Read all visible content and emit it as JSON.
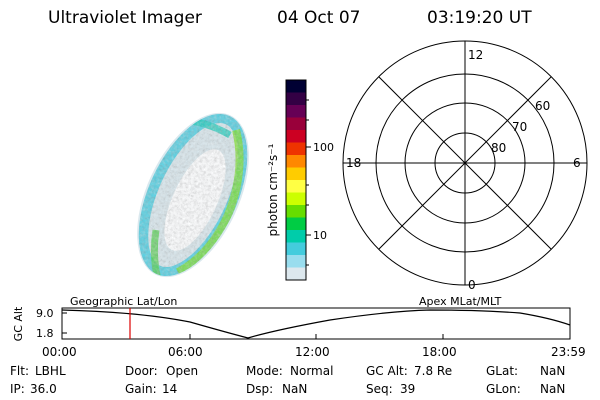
{
  "header": {
    "instrument": "Ultraviolet Imager",
    "date": "04 Oct 07",
    "time": "03:19:20 UT"
  },
  "colorbar": {
    "unit_label": "photon cm⁻²s⁻¹",
    "ticks": [
      "100",
      "10"
    ],
    "colors": [
      "#000033",
      "#330044",
      "#660055",
      "#99003a",
      "#cc0022",
      "#ee3300",
      "#ff8800",
      "#ffcc00",
      "#ffff44",
      "#ccff00",
      "#66dd00",
      "#00cc44",
      "#00ccaa",
      "#44ccdd",
      "#99ddee",
      "#dde8ee"
    ]
  },
  "polar_plot": {
    "mlt_labels": {
      "top": "12",
      "right": "6",
      "bottom": "0",
      "left": "18"
    },
    "lat_labels": [
      "60",
      "70",
      "80"
    ]
  },
  "timeline": {
    "ylabel": "GC Alt",
    "yticks": [
      "9.0",
      "1.8"
    ],
    "left_label": "Geographic Lat/Lon",
    "right_label": "Apex MLat/MLT",
    "xticks": [
      "00:00",
      "06:00",
      "12:00",
      "18:00",
      "23:59"
    ]
  },
  "info": {
    "row1": [
      {
        "key": "Flt:",
        "value": "LBHL"
      },
      {
        "key": "Door:",
        "value": "Open"
      },
      {
        "key": "Mode:",
        "value": "Normal"
      },
      {
        "key": "GC Alt:",
        "value": "7.8 Re"
      },
      {
        "key": "GLat:",
        "value": "NaN"
      }
    ],
    "row2": [
      {
        "key": "IP:",
        "value": "36.0"
      },
      {
        "key": "Gain:",
        "value": "14"
      },
      {
        "key": "Dsp:",
        "value": "NaN"
      },
      {
        "key": "Seq:",
        "value": "39"
      },
      {
        "key": "GLon:",
        "value": "NaN"
      }
    ]
  }
}
